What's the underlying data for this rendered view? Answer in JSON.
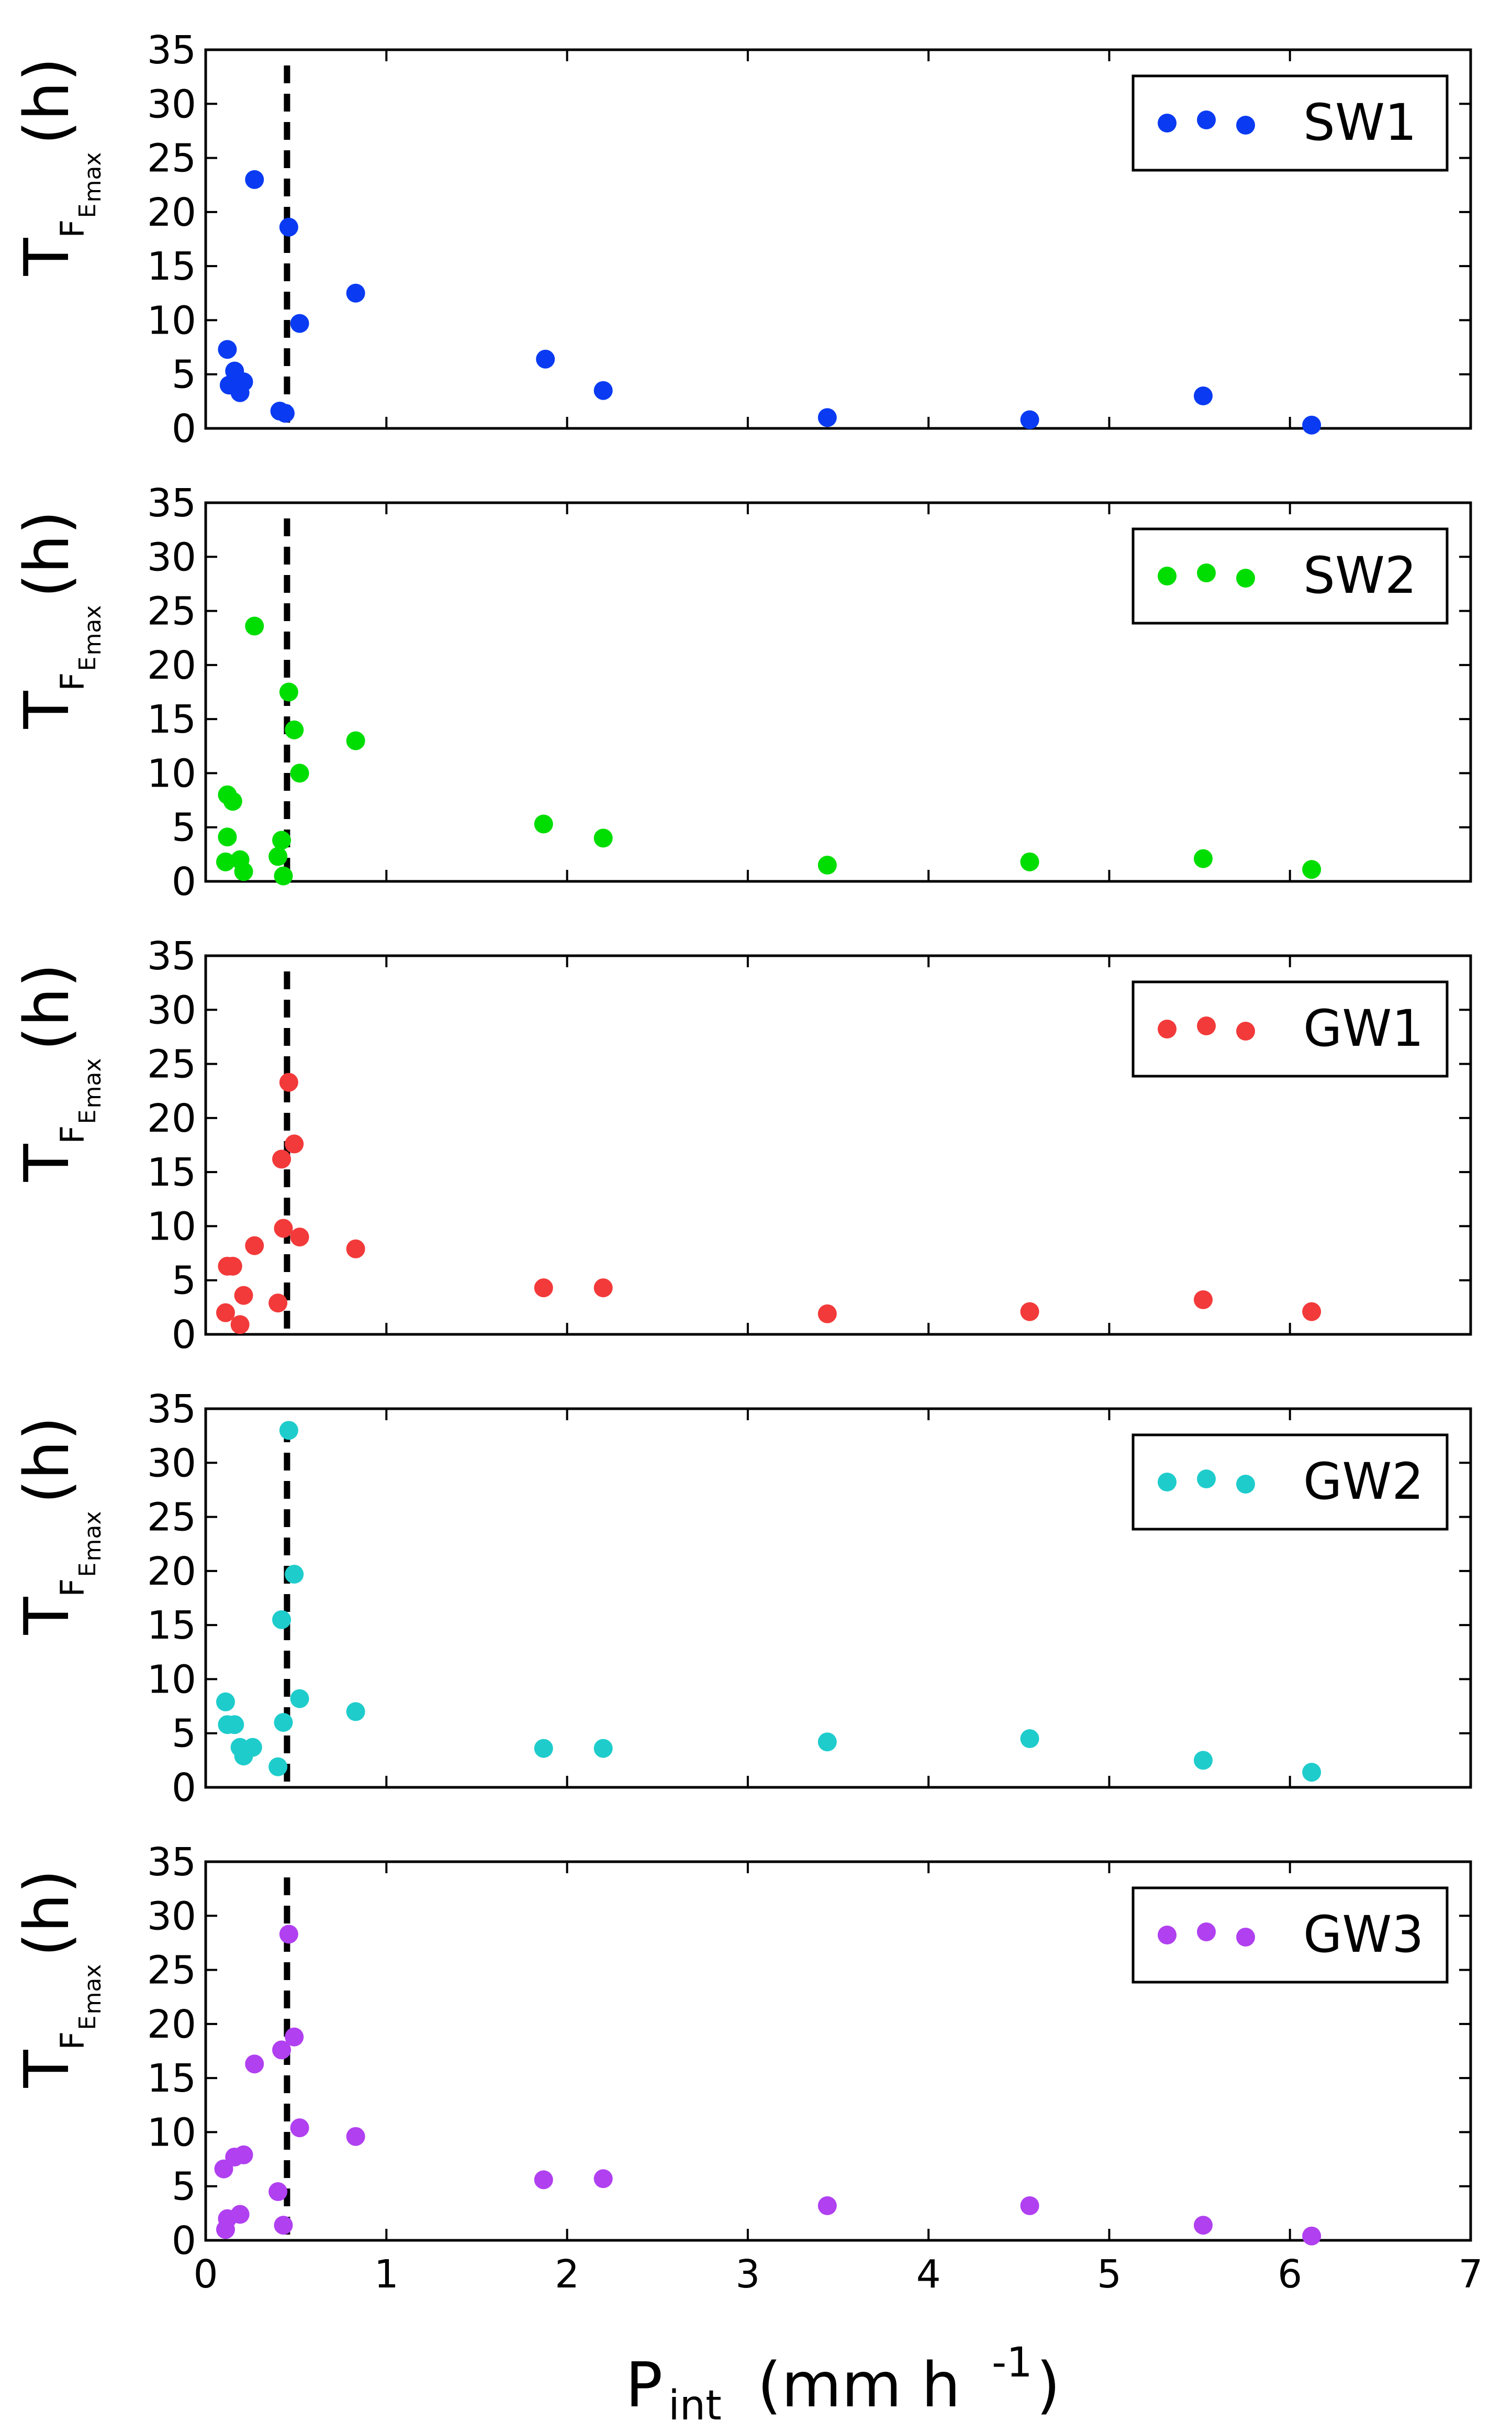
{
  "figure": {
    "shared_x_axis": {
      "label": {
        "main": "P",
        "sub": "int",
        "unit_pre": "(mm h",
        "unit_exp": "-1",
        "unit_post": ")"
      },
      "ticks": [
        "0",
        "1",
        "2",
        "3",
        "4",
        "5",
        "6",
        "7"
      ]
    },
    "y_label": {
      "main": "T",
      "sub": "F",
      "subsub": "E",
      "subsubsub": "max",
      "unit": "(h)"
    },
    "y_ticks": [
      "0",
      "5",
      "10",
      "15",
      "20",
      "25",
      "30",
      "35"
    ],
    "threshold_line_x": 0.45
  },
  "chart_data": [
    {
      "type": "scatter",
      "series_name": "SW1",
      "color": "#0a3bf2",
      "xlim": [
        0,
        7
      ],
      "ylim": [
        0,
        35
      ],
      "xlabel": "P_int (mm h^-1)",
      "ylabel": "T_F_E_max (h)",
      "legend_position": "top-right",
      "x": [
        0.12,
        0.13,
        0.16,
        0.19,
        0.21,
        0.27,
        0.41,
        0.44,
        0.46,
        0.52,
        0.83,
        1.88,
        2.2,
        3.44,
        4.56,
        5.52,
        6.12
      ],
      "y": [
        7.3,
        4.0,
        5.3,
        3.3,
        4.3,
        23.0,
        1.6,
        1.4,
        18.6,
        9.7,
        12.5,
        6.4,
        3.5,
        1.0,
        0.8,
        3.0,
        0.3
      ]
    },
    {
      "type": "scatter",
      "series_name": "SW2",
      "color": "#00dd00",
      "xlim": [
        0,
        7
      ],
      "ylim": [
        0,
        35
      ],
      "xlabel": "P_int (mm h^-1)",
      "ylabel": "T_F_E_max (h)",
      "legend_position": "top-right",
      "x": [
        0.11,
        0.12,
        0.12,
        0.15,
        0.19,
        0.21,
        0.27,
        0.4,
        0.42,
        0.43,
        0.46,
        0.49,
        0.52,
        0.83,
        1.87,
        2.2,
        3.44,
        4.56,
        5.52,
        6.12
      ],
      "y": [
        1.8,
        4.1,
        8.0,
        7.4,
        2.0,
        0.9,
        23.6,
        2.3,
        3.8,
        0.5,
        17.5,
        14.0,
        10.0,
        13.0,
        5.3,
        4.0,
        1.5,
        1.8,
        2.1,
        1.1
      ]
    },
    {
      "type": "scatter",
      "series_name": "GW1",
      "color": "#f23a3a",
      "xlim": [
        0,
        7
      ],
      "ylim": [
        0,
        35
      ],
      "xlabel": "P_int (mm h^-1)",
      "ylabel": "T_F_E_max (h)",
      "legend_position": "top-right",
      "x": [
        0.11,
        0.12,
        0.15,
        0.19,
        0.21,
        0.27,
        0.4,
        0.42,
        0.43,
        0.46,
        0.49,
        0.52,
        0.83,
        1.87,
        2.2,
        3.44,
        4.56,
        5.52,
        6.12
      ],
      "y": [
        2.0,
        6.3,
        6.3,
        0.9,
        3.6,
        8.2,
        2.9,
        16.2,
        9.8,
        23.3,
        17.6,
        9.0,
        7.9,
        4.3,
        4.3,
        1.9,
        2.1,
        3.2,
        2.1
      ]
    },
    {
      "type": "scatter",
      "series_name": "GW2",
      "color": "#1fcccc",
      "xlim": [
        0,
        7
      ],
      "ylim": [
        0,
        35
      ],
      "xlabel": "P_int (mm h^-1)",
      "ylabel": "T_F_E_max (h)",
      "legend_position": "top-right",
      "x": [
        0.11,
        0.12,
        0.16,
        0.19,
        0.21,
        0.26,
        0.4,
        0.42,
        0.43,
        0.46,
        0.49,
        0.52,
        0.83,
        1.87,
        2.2,
        3.44,
        4.56,
        5.52,
        6.12
      ],
      "y": [
        7.9,
        5.8,
        5.8,
        3.7,
        2.9,
        3.7,
        1.9,
        15.5,
        6.0,
        33.0,
        19.7,
        8.2,
        7.0,
        3.6,
        3.6,
        4.2,
        4.5,
        2.5,
        1.4
      ]
    },
    {
      "type": "scatter",
      "series_name": "GW3",
      "color": "#b040f0",
      "xlim": [
        0,
        7
      ],
      "ylim": [
        0,
        35
      ],
      "xlabel": "P_int (mm h^-1)",
      "ylabel": "T_F_E_max (h)",
      "legend_position": "top-right",
      "x": [
        0.1,
        0.11,
        0.12,
        0.16,
        0.19,
        0.21,
        0.27,
        0.4,
        0.42,
        0.43,
        0.46,
        0.49,
        0.52,
        0.83,
        1.87,
        2.2,
        3.44,
        4.56,
        5.52,
        6.12
      ],
      "y": [
        6.6,
        1.0,
        2.0,
        7.7,
        2.4,
        7.9,
        16.3,
        4.5,
        17.6,
        1.4,
        28.3,
        18.8,
        10.4,
        9.6,
        5.6,
        5.7,
        3.2,
        3.2,
        1.4,
        0.4
      ]
    }
  ]
}
